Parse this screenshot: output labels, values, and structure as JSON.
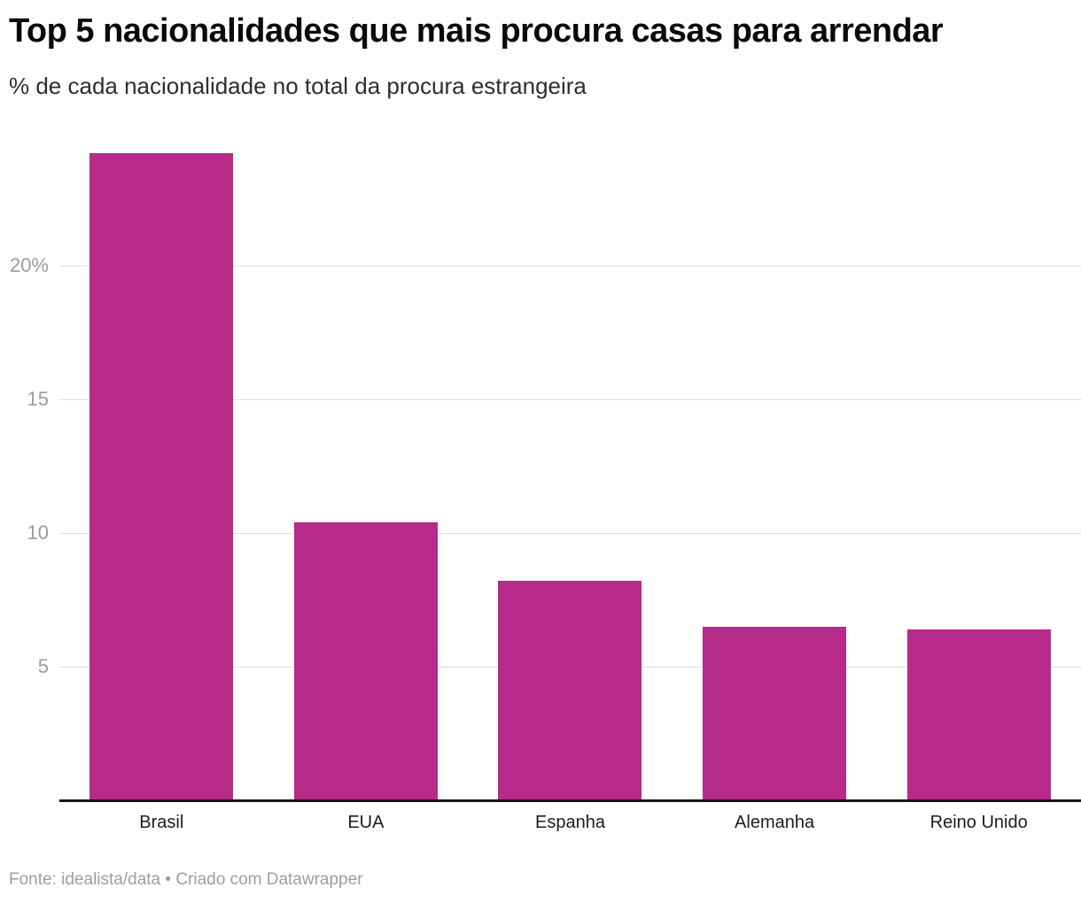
{
  "header": {
    "title": "Top 5 nacionalidades que mais procura casas para arrendar",
    "subtitle": "% de cada nacionalidade no total da procura estrangeira"
  },
  "chart_data": {
    "type": "bar",
    "title": "Top 5 nacionalidades que mais procura casas para arrendar",
    "subtitle": "% de cada nacionalidade no total da procura estrangeira",
    "categories": [
      "Brasil",
      "EUA",
      "Espanha",
      "Alemanha",
      "Reino Unido"
    ],
    "values": [
      24.2,
      10.4,
      8.2,
      6.5,
      6.4
    ],
    "xlabel": "",
    "ylabel": "% de cada nacionalidade",
    "ylim": [
      0,
      24.3
    ],
    "yticks": [
      {
        "value": 5,
        "label": "5"
      },
      {
        "value": 10,
        "label": "10"
      },
      {
        "value": 15,
        "label": "15"
      },
      {
        "value": 20,
        "label": "20%"
      }
    ],
    "grid": "horizontal",
    "legend": "none",
    "bar_color": "#b62a8a",
    "gridline_color": "#dddddd",
    "axis_label_color": "#9d9d9d",
    "baseline_color": "#151515"
  },
  "footer": {
    "text": "Fonte: idealista/data • Criado com Datawrapper"
  }
}
